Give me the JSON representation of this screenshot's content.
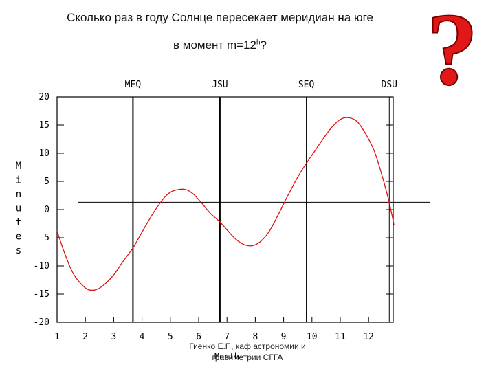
{
  "title": {
    "line1": "Сколько раз в году Солнце пересекает меридиан на юге",
    "line2_prefix": "в момент ",
    "line2_var": "m=12",
    "line2_sup": "h",
    "line2_suffix": "?"
  },
  "question_mark": "?",
  "footer": {
    "line1": "Гиенко Е.Г., каф астрономии и",
    "line2": "гравиметрии СГГА"
  },
  "chart_data": {
    "type": "line",
    "xlabel": "Month",
    "ylabel": "Minutes",
    "xlim": [
      1,
      12.9
    ],
    "ylim": [
      -20,
      20
    ],
    "x_ticks": [
      "1",
      "2",
      "3",
      "4",
      "5",
      "6",
      "7",
      "8",
      "9",
      "10",
      "11",
      "12"
    ],
    "y_ticks": [
      "20",
      "15",
      "10",
      "5",
      "0",
      "-5",
      "-10",
      "-15",
      "-20"
    ],
    "event_markers": [
      {
        "label": "MEQ",
        "x": 3.68
      },
      {
        "label": "JSU",
        "x": 6.75
      },
      {
        "label": "SEQ",
        "x": 9.8
      },
      {
        "label": "DSU",
        "x": 12.73
      }
    ],
    "reference_line_y": 1.3,
    "series": [
      {
        "color": "#e01010",
        "x": [
          1.0,
          1.3,
          1.6,
          2.0,
          2.3,
          2.6,
          3.0,
          3.3,
          3.68,
          4.0,
          4.4,
          4.8,
          5.1,
          5.5,
          5.8,
          6.1,
          6.4,
          6.75,
          7.0,
          7.3,
          7.6,
          7.9,
          8.2,
          8.5,
          8.8,
          9.1,
          9.5,
          9.8,
          10.1,
          10.4,
          10.7,
          11.0,
          11.3,
          11.6,
          11.9,
          12.2,
          12.5,
          12.73,
          12.9
        ],
        "values": [
          -3.8,
          -8.2,
          -11.6,
          -13.9,
          -14.3,
          -13.6,
          -11.6,
          -9.4,
          -6.8,
          -4.0,
          -0.6,
          2.2,
          3.3,
          3.6,
          2.8,
          1.2,
          -0.6,
          -2.2,
          -3.6,
          -5.2,
          -6.2,
          -6.4,
          -5.6,
          -3.8,
          -1.0,
          2.0,
          5.8,
          8.2,
          10.4,
          12.6,
          14.6,
          16.0,
          16.3,
          15.6,
          13.4,
          10.4,
          5.6,
          1.2,
          -2.8
        ]
      }
    ]
  }
}
